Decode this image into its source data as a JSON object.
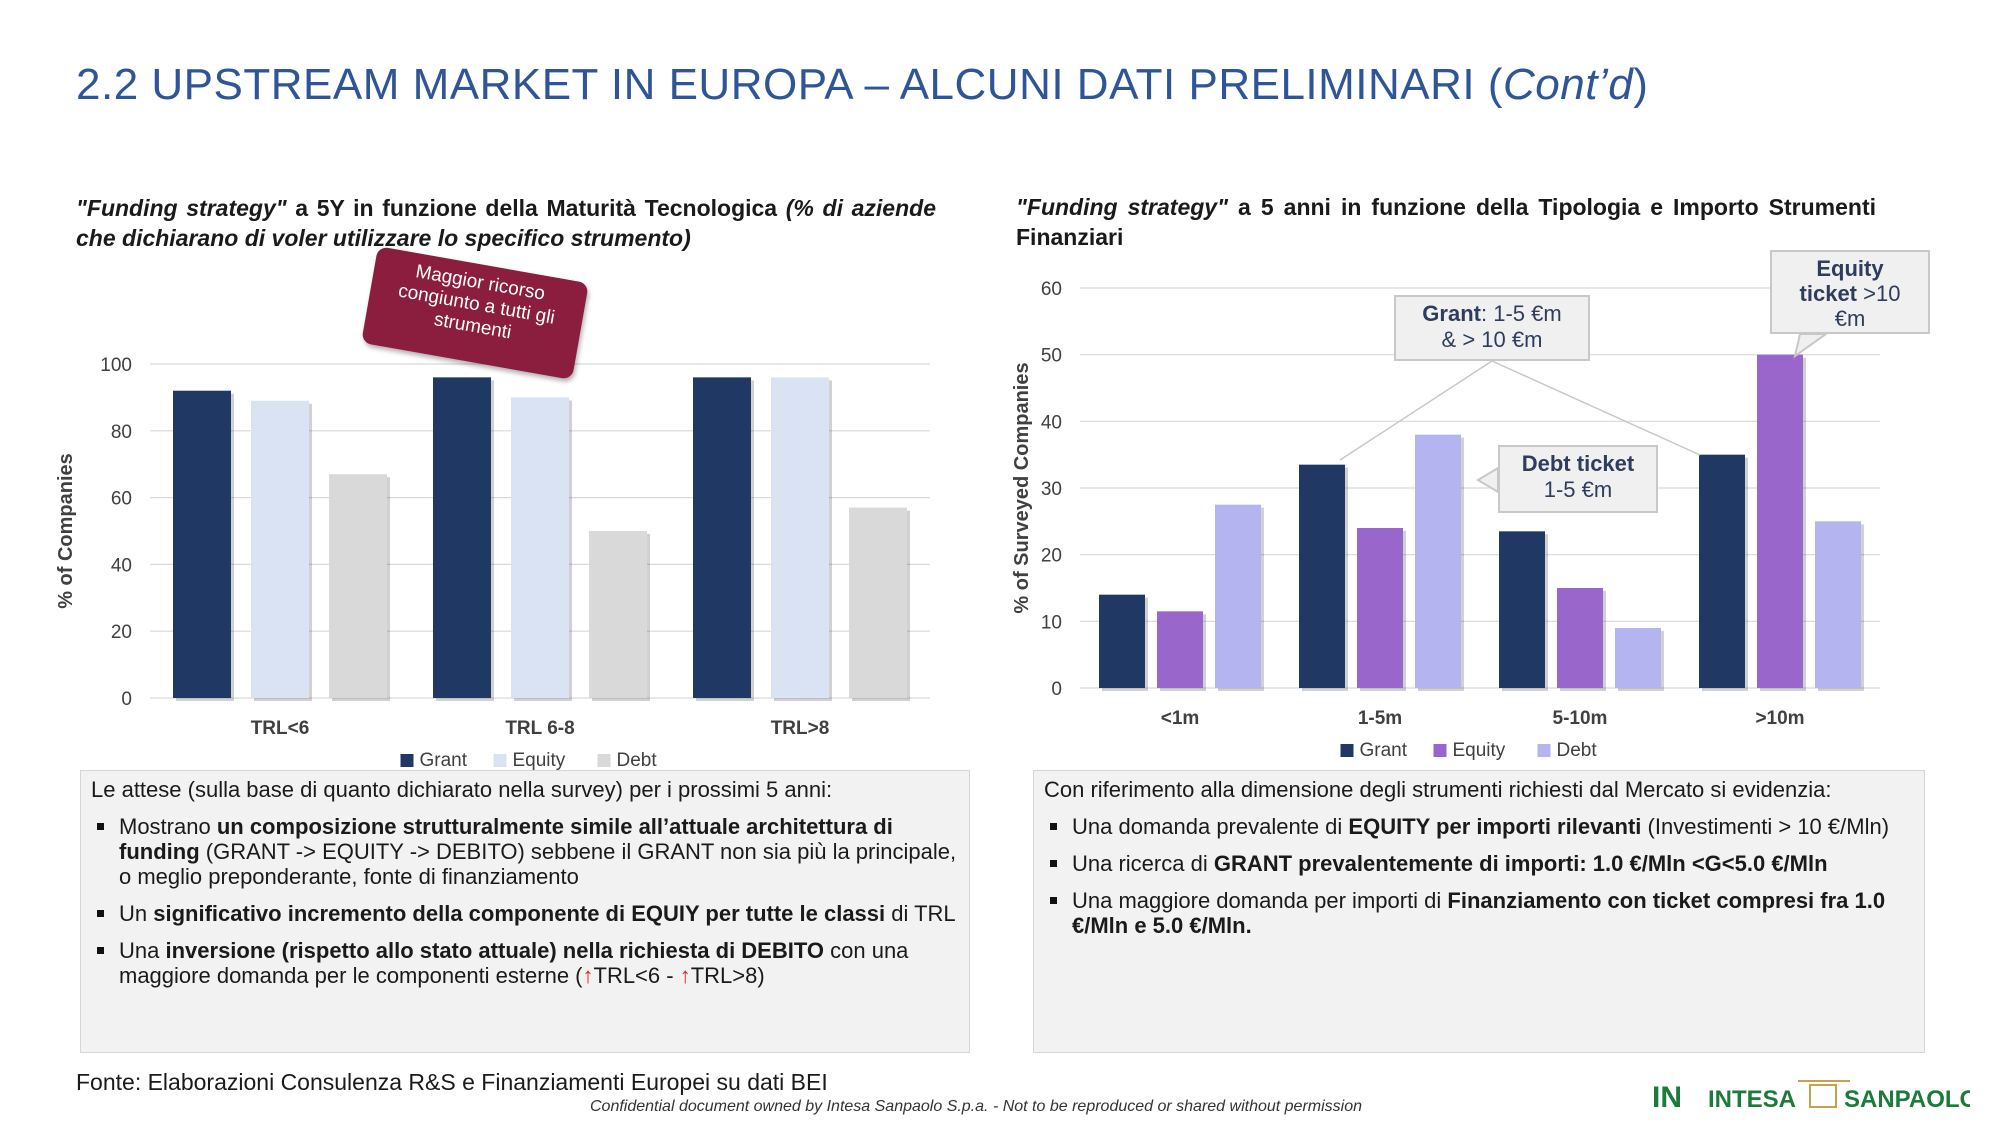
{
  "title": {
    "main": "2.2 UPSTREAM MARKET IN EUROPA – ALCUNI DATI PRELIMINARI (",
    "italic": "Cont’d",
    "close": ")"
  },
  "left_subtitle": {
    "part1_italic": "\"Funding strategy\"",
    "part2": " a 5Y in funzione della Maturità Tecnologica ",
    "part3_italic": "(% di aziende che dichiarano di voler utilizzare lo specifico strumento)"
  },
  "right_subtitle": {
    "part1_italic": "\"Funding strategy\"",
    "part2": " a 5 anni in funzione della Tipologia e Importo Strumenti Finanziari"
  },
  "callouts": {
    "maggior": "Maggior ricorso congiunto a tutti gli strumenti",
    "grant_bold": "Grant",
    "grant_rest1": ": 1-5 €m",
    "grant_rest2": "& > 10 €m",
    "debt_bold": "Debt ticket",
    "debt_rest": "1-5 €m",
    "equity_bold1": "Equity",
    "equity_bold2": "ticket",
    "equity_rest1": " >10",
    "equity_rest2": "€m"
  },
  "chart_data": [
    {
      "type": "bar",
      "categories": [
        "TRL<6",
        "TRL 6-8",
        "TRL>8"
      ],
      "series": [
        {
          "name": "Grant",
          "values": [
            92,
            96,
            96
          ],
          "color": "#1f3864"
        },
        {
          "name": "Equity",
          "values": [
            89,
            90,
            96
          ],
          "color": "#dae3f3"
        },
        {
          "name": "Debt",
          "values": [
            67,
            50,
            57
          ],
          "color": "#d9d9d9"
        }
      ],
      "ylabel": "% of Companies",
      "ylim": [
        0,
        100
      ],
      "yticks": [
        0,
        20,
        40,
        60,
        80,
        100
      ],
      "grid": true,
      "legend": "bottom"
    },
    {
      "type": "bar",
      "categories": [
        "<1m",
        "1-5m",
        "5-10m",
        ">10m"
      ],
      "series": [
        {
          "name": "Grant",
          "values": [
            14,
            33.5,
            23.5,
            35
          ],
          "color": "#1f3864"
        },
        {
          "name": "Equity",
          "values": [
            11.5,
            24,
            15,
            50
          ],
          "color": "#9966cc"
        },
        {
          "name": "Debt",
          "values": [
            27.5,
            38,
            9,
            25
          ],
          "color": "#b4b4f0"
        }
      ],
      "ylabel": "% of Surveyed Companies",
      "ylim": [
        0,
        60
      ],
      "yticks": [
        0,
        10,
        20,
        30,
        40,
        50,
        60
      ],
      "grid": true,
      "legend": "bottom"
    }
  ],
  "left_box": {
    "intro": "Le attese (sulla base di quanto dichiarato nella survey) per i prossimi 5 anni:",
    "b1_pre": "Mostrano ",
    "b1_bold": "un composizione strutturalmente simile all’attuale architettura di funding",
    "b1_post": " (GRANT -> EQUITY -> DEBITO) sebbene il GRANT non sia più la principale, o meglio preponderante, fonte di finanziamento",
    "b2_pre": "Un ",
    "b2_bold": "significativo incremento della componente di EQUIY per tutte le classi",
    "b2_post": " di TRL",
    "b3_pre": "Una ",
    "b3_bold": "inversione (rispetto allo stato attuale) nella richiesta di DEBITO",
    "b3_post": " con una maggiore domanda per le componenti esterne (",
    "arrow": "↑",
    "b3_a": "TRL<6 - ",
    "b3_b": "TRL>8)"
  },
  "right_box": {
    "intro": "Con riferimento alla dimensione degli strumenti richiesti dal Mercato si evidenzia:",
    "b1_pre": "Una domanda prevalente di ",
    "b1_bold": "EQUITY per importi rilevanti",
    "b1_post": " (Investimenti > 10 €/Mln)",
    "b2_pre": "Una ricerca di ",
    "b2_bold": "GRANT prevalentemente di importi: 1.0 €/Mln <G<5.0 €/Mln",
    "b3_pre": "Una maggiore domanda per importi di ",
    "b3_bold": "Finanziamento con ticket compresi fra 1.0 €/Mln e 5.0 €/Mln."
  },
  "footer": {
    "source": "Fonte: Elaborazioni Consulenza R&S e Finanziamenti Europei su dati BEI",
    "confidential": "Confidential document owned by Intesa Sanpaolo S.p.a. - Not to be reproduced or shared without permission",
    "logo_in": "IN",
    "logo_intesa": "INTESA",
    "logo_sanpaolo": "SANPAOLO"
  }
}
